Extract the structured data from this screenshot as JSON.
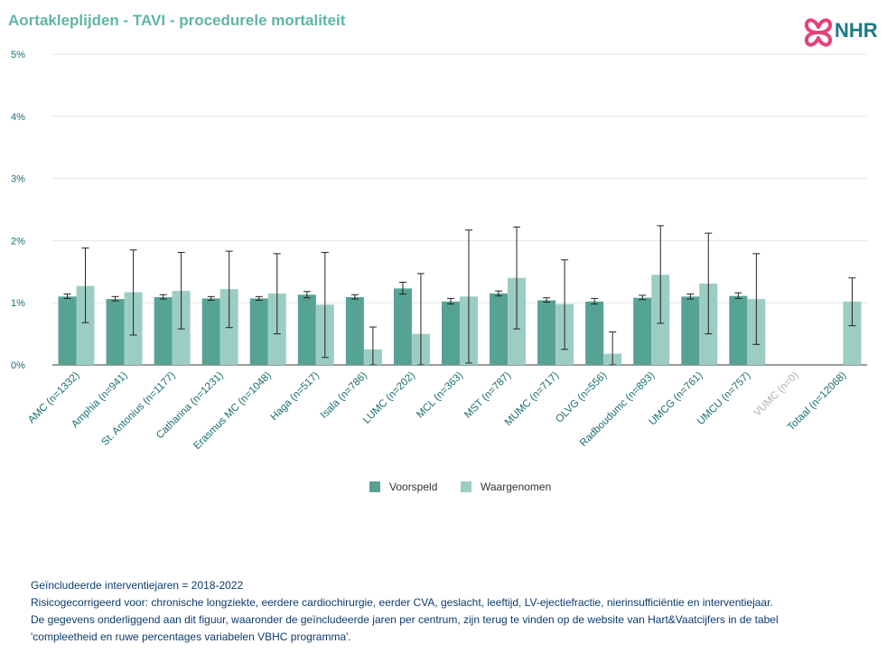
{
  "header": {
    "title": "Aortakleplijden - TAVI - procedurele mortaliteit",
    "logo_text": "NHR"
  },
  "colors": {
    "title": "#5fb5a6",
    "predicted": "#56a394",
    "observed": "#9ccdc3",
    "axis_text": "#1a6e70",
    "footnote": "#0d3b6e",
    "logo_pink": "#e6407a",
    "logo_text": "#1a7a88"
  },
  "chart_data": {
    "type": "bar",
    "ylim": [
      0,
      5
    ],
    "yticks": [
      0,
      1,
      2,
      3,
      4,
      5
    ],
    "ytick_labels": [
      "0%",
      "1%",
      "2%",
      "3%",
      "4%",
      "5%"
    ],
    "grid": true,
    "legend_position": "bottom-center",
    "categories": [
      "AMC (n=1332)",
      "Amphia (n=941)",
      "St. Antonius (n=1177)",
      "Catharina (n=1231)",
      "Erasmus MC (n=1048)",
      "Haga (n=517)",
      "Isala (n=786)",
      "LUMC (n=202)",
      "MCL (n=363)",
      "MST (n=787)",
      "MUMC (n=717)",
      "OLVG (n=556)",
      "Radboudumc (n=893)",
      "UMCG (n=761)",
      "UMCU (n=757)",
      "VUMC (n=0)",
      "Totaal (n=12068)"
    ],
    "greyed_categories": [
      "VUMC (n=0)"
    ],
    "series": [
      {
        "name": "Voorspeld",
        "values": [
          1.1,
          1.06,
          1.09,
          1.07,
          1.07,
          1.13,
          1.09,
          1.23,
          1.02,
          1.15,
          1.04,
          1.02,
          1.08,
          1.1,
          1.11,
          null,
          null
        ],
        "error_low": [
          1.07,
          1.03,
          1.06,
          1.04,
          1.04,
          1.08,
          1.06,
          1.14,
          0.98,
          1.11,
          1.01,
          0.98,
          1.05,
          1.06,
          1.07,
          null,
          null
        ],
        "error_high": [
          1.14,
          1.1,
          1.13,
          1.1,
          1.1,
          1.18,
          1.13,
          1.33,
          1.07,
          1.19,
          1.08,
          1.07,
          1.12,
          1.14,
          1.16,
          null,
          null
        ]
      },
      {
        "name": "Waargenomen",
        "values": [
          1.27,
          1.17,
          1.19,
          1.22,
          1.15,
          0.97,
          0.25,
          0.5,
          1.1,
          1.4,
          0.98,
          0.18,
          1.45,
          1.31,
          1.06,
          null,
          1.02
        ],
        "error_low": [
          0.68,
          0.48,
          0.58,
          0.6,
          0.5,
          0.12,
          0.0,
          0.0,
          0.03,
          0.58,
          0.25,
          0.0,
          0.67,
          0.5,
          0.33,
          null,
          0.63
        ],
        "error_high": [
          1.88,
          1.85,
          1.81,
          1.83,
          1.79,
          1.81,
          0.61,
          1.47,
          2.17,
          2.22,
          1.69,
          0.53,
          2.24,
          2.12,
          1.79,
          null,
          1.4
        ]
      }
    ]
  },
  "legend": {
    "predicted_label": "Voorspeld",
    "observed_label": "Waargenomen"
  },
  "footnotes": {
    "line1": "Geïncludeerde interventiejaren = 2018-2022",
    "line2": "Risicogecorrigeerd voor: chronische longziekte, eerdere cardiochirurgie, eerder CVA, geslacht, leeftijd, LV-ejectiefractie, nierinsufficiëntie en interventiejaar.",
    "line3": "De gegevens onderliggend aan dit figuur, waaronder de geïncludeerde jaren per centrum, zijn terug te vinden op de website van Hart&Vaatcijfers in de tabel",
    "line4": "'compleetheid en ruwe percentages variabelen VBHC programma'."
  }
}
